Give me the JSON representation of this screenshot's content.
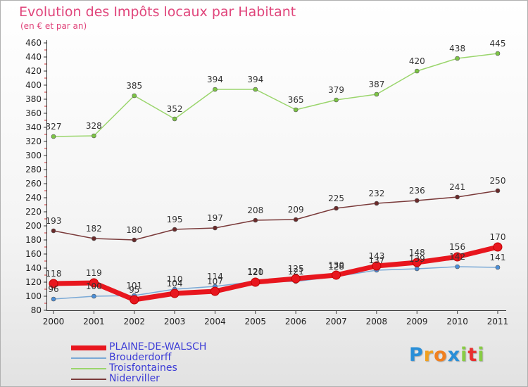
{
  "header": {
    "title": "Evolution des Impôts locaux par Habitant",
    "subtitle": "(en € et par an)"
  },
  "logo": {
    "letters": [
      "P",
      "r",
      "o",
      "x",
      "i",
      "t",
      "i"
    ],
    "colors": [
      "#2a8fd8",
      "#f0a020",
      "#f08020",
      "#2a8fd8",
      "#88cc44",
      "#e83030",
      "#88cc44"
    ]
  },
  "chart_data": {
    "type": "line",
    "title": "Evolution des Impôts locaux par Habitant",
    "subtitle": "(en € et par an)",
    "xlabel": "",
    "ylabel": "",
    "x": [
      "2000",
      "2001",
      "2002",
      "2003",
      "2004",
      "2005",
      "2006",
      "2007",
      "2008",
      "2009",
      "2010",
      "2011"
    ],
    "ylim": [
      80,
      460
    ],
    "yticks": [
      80,
      100,
      120,
      140,
      160,
      180,
      200,
      220,
      240,
      260,
      280,
      300,
      320,
      340,
      360,
      380,
      400,
      420,
      440,
      460
    ],
    "grid": false,
    "legend_position": "bottom-left",
    "series": [
      {
        "name": "PLAINE-DE-WALSCH",
        "color": "#e8161e",
        "marker": "#e8161e",
        "emphasis": true,
        "values": [
          118,
          119,
          95,
          104,
          107,
          120,
          125,
          130,
          143,
          148,
          156,
          170
        ]
      },
      {
        "name": "Brouderdorff",
        "color": "#7aa9d6",
        "marker": "#4a8ed8",
        "emphasis": false,
        "values": [
          96,
          100,
          101,
          110,
          114,
          121,
          121,
          128,
          137,
          139,
          142,
          141
        ]
      },
      {
        "name": "Troisfontaines",
        "color": "#9ad56c",
        "marker": "#7cc444",
        "emphasis": false,
        "values": [
          327,
          328,
          385,
          352,
          394,
          394,
          365,
          379,
          387,
          420,
          438,
          445
        ]
      },
      {
        "name": "Niderviller",
        "color": "#7a3a3a",
        "marker": "#6a2a2a",
        "emphasis": false,
        "values": [
          193,
          182,
          180,
          195,
          197,
          208,
          209,
          225,
          232,
          236,
          241,
          250
        ]
      }
    ]
  }
}
